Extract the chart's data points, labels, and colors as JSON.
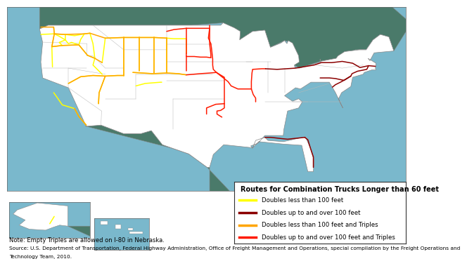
{
  "title": "Routes for Combination Trucks Longer than 60 feet",
  "ocean_color": "#7ab8cc",
  "us_land_color": "#ffffff",
  "other_land_color": "#4a7a6a",
  "state_edge_color": "#b8b8b8",
  "country_edge_color": "#888888",
  "fig_bg": "#ffffff",
  "legend_bg": "#ffffff",
  "legend_edge": "#333333",
  "yellow": {
    "color": "#ffff00",
    "label": "Doubles less than 100 feet"
  },
  "darkred": {
    "color": "#8b0000",
    "label": "Doubles up to and over 100 feet"
  },
  "orange": {
    "color": "#ffa500",
    "label": "Doubles less than 100 feet and Triples"
  },
  "red": {
    "color": "#ff1a00",
    "label": "Doubles up to and over 100 feet and Triples"
  },
  "legend_title_fontsize": 7.0,
  "legend_label_fontsize": 6.2,
  "note": "Note: Empty Triples are allowed on I-80 in Nebraska.",
  "source_line1": "Source: U.S. Department of Transportation, Federal Highway Administration, Office of Freight Management and Operations, special compilation by the Freight Operations and",
  "source_line2": "Technology Team, 2010."
}
